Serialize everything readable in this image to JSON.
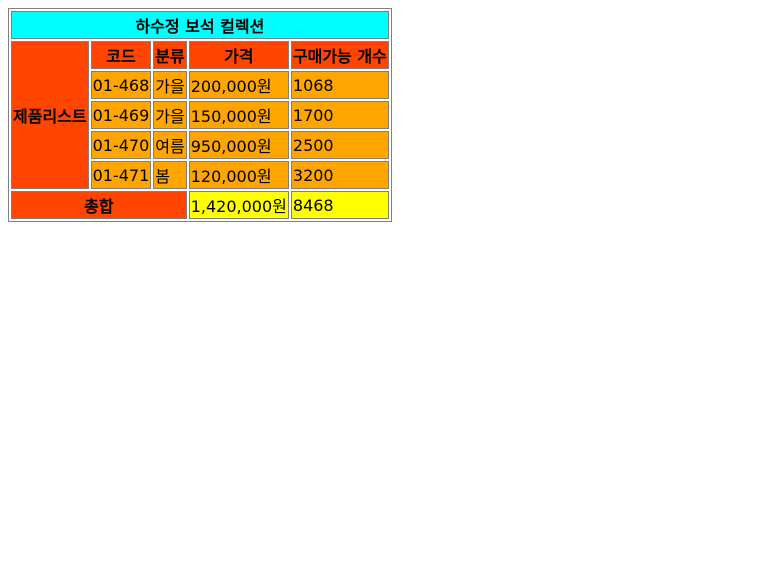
{
  "table": {
    "title": "하수정 보석 컬렉션",
    "row_group_label": "제품리스트",
    "headers": [
      "코드",
      "분류",
      "가격",
      "구매가능 개수"
    ],
    "rows": [
      [
        "01-468",
        "가을",
        "200,000원",
        "1068"
      ],
      [
        "01-469",
        "가을",
        "150,000원",
        "1700"
      ],
      [
        "01-470",
        "여름",
        "950,000원",
        "2500"
      ],
      [
        "01-471",
        "봄",
        "120,000원",
        "3200"
      ]
    ],
    "total": {
      "label": "총합",
      "price": "1,420,000원",
      "count": "8468"
    }
  },
  "colors": {
    "title_bg": "#00ffff",
    "header_bg": "#ff4500",
    "cell_bg": "#ffa500",
    "total_bg": "#ffff00"
  }
}
